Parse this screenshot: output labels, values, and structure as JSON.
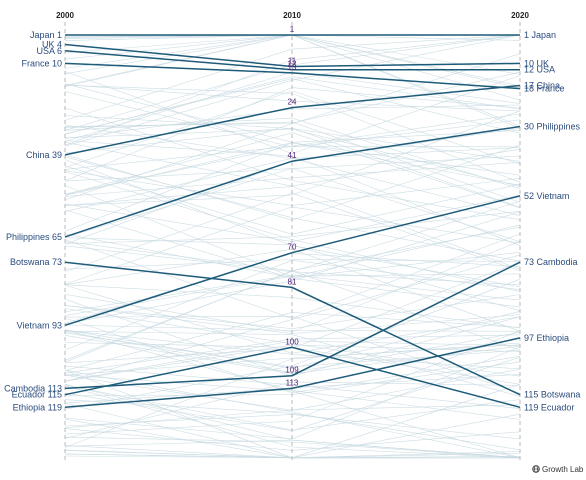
{
  "colors": {
    "highlight": "#1d5b79",
    "label": "#2a4b7c",
    "mid_label": "#4b1d73",
    "background_line": "#c6d9e1",
    "axis": "#b8b8b8"
  },
  "brand": {
    "icon": "globe-logo-icon",
    "text": "Growth Lab"
  },
  "chart_data": {
    "type": "line",
    "chart_kind": "slope chart (rank bump chart)",
    "y_axis": {
      "quantity": "rank",
      "inverted": true,
      "range": [
        1,
        135
      ]
    },
    "grid": false,
    "years": [
      "2000",
      "2010",
      "2020"
    ],
    "series": [
      {
        "name": "Japan",
        "ranks": [
          1,
          1,
          1
        ],
        "label_2000": "Japan 1",
        "label_2010": "1",
        "label_2020": "1 Japan"
      },
      {
        "name": "UK",
        "ranks": [
          4,
          11,
          10
        ],
        "label_2000": "UK 4",
        "label_2010": "11",
        "label_2020": "10 UK"
      },
      {
        "name": "USA",
        "ranks": [
          6,
          12,
          12
        ],
        "label_2000": "USA 6",
        "label_2010": "12",
        "label_2020": "12 USA"
      },
      {
        "name": "France",
        "ranks": [
          10,
          13,
          18
        ],
        "label_2000": "France 10",
        "label_2010": "13",
        "label_2020": "18 France"
      },
      {
        "name": "China",
        "ranks": [
          39,
          24,
          17
        ],
        "label_2000": "China 39",
        "label_2010": "24",
        "label_2020": "17 China"
      },
      {
        "name": "Philippines",
        "ranks": [
          65,
          41,
          30
        ],
        "label_2000": "Philippines 65",
        "label_2010": "41",
        "label_2020": "30 Philippines"
      },
      {
        "name": "Vietnam",
        "ranks": [
          93,
          70,
          52
        ],
        "label_2000": "Vietnam 93",
        "label_2010": "70",
        "label_2020": "52 Vietnam"
      },
      {
        "name": "Botswana",
        "ranks": [
          73,
          81,
          115
        ],
        "label_2000": "Botswana 73",
        "label_2010": "81",
        "label_2020": "115 Botswana"
      },
      {
        "name": "Cambodia",
        "ranks": [
          113,
          109,
          73
        ],
        "label_2000": "Cambodia 113",
        "label_2010": "109",
        "label_2020": "73 Cambodia"
      },
      {
        "name": "Ecuador",
        "ranks": [
          115,
          100,
          119
        ],
        "label_2000": "Ecuador 115",
        "label_2010": "100",
        "label_2020": "119 Ecuador"
      },
      {
        "name": "Ethiopia",
        "ranks": [
          119,
          113,
          97
        ],
        "label_2000": "Ethiopia 119",
        "label_2010": "113",
        "label_2020": "97 Ethiopia"
      }
    ]
  }
}
